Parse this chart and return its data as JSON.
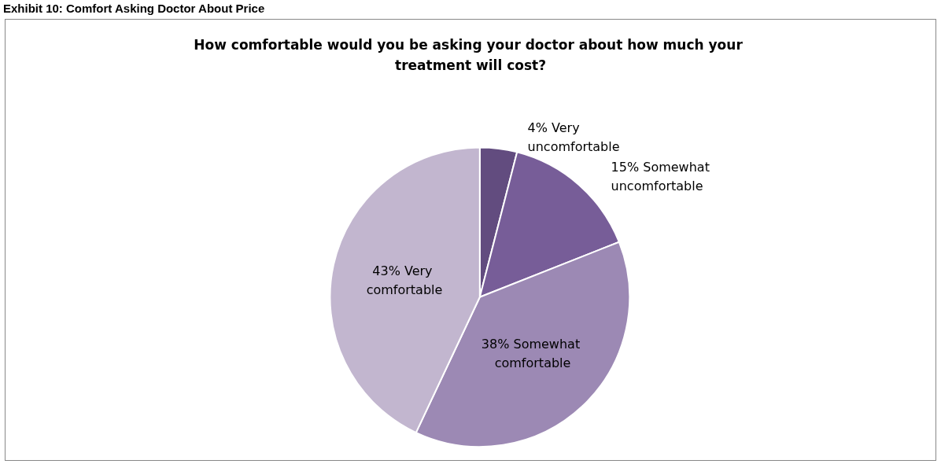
{
  "chart_data": {
    "type": "pie",
    "title": "How comfortable would you be asking your doctor about how much your treatment will cost?",
    "annotations": [
      "Exhibit 10: Comfort Asking Doctor About Price"
    ],
    "categories": [
      "Very uncomfortable",
      "Somewhat uncomfortable",
      "Somewhat comfortable",
      "Very comfortable"
    ],
    "values": [
      4,
      15,
      38,
      43
    ],
    "colors": [
      "#624c7f",
      "#775d98",
      "#9c89b4",
      "#c2b6cf"
    ],
    "value_labels": [
      "4%",
      "15%",
      "38%",
      "43%"
    ],
    "legend": false
  }
}
